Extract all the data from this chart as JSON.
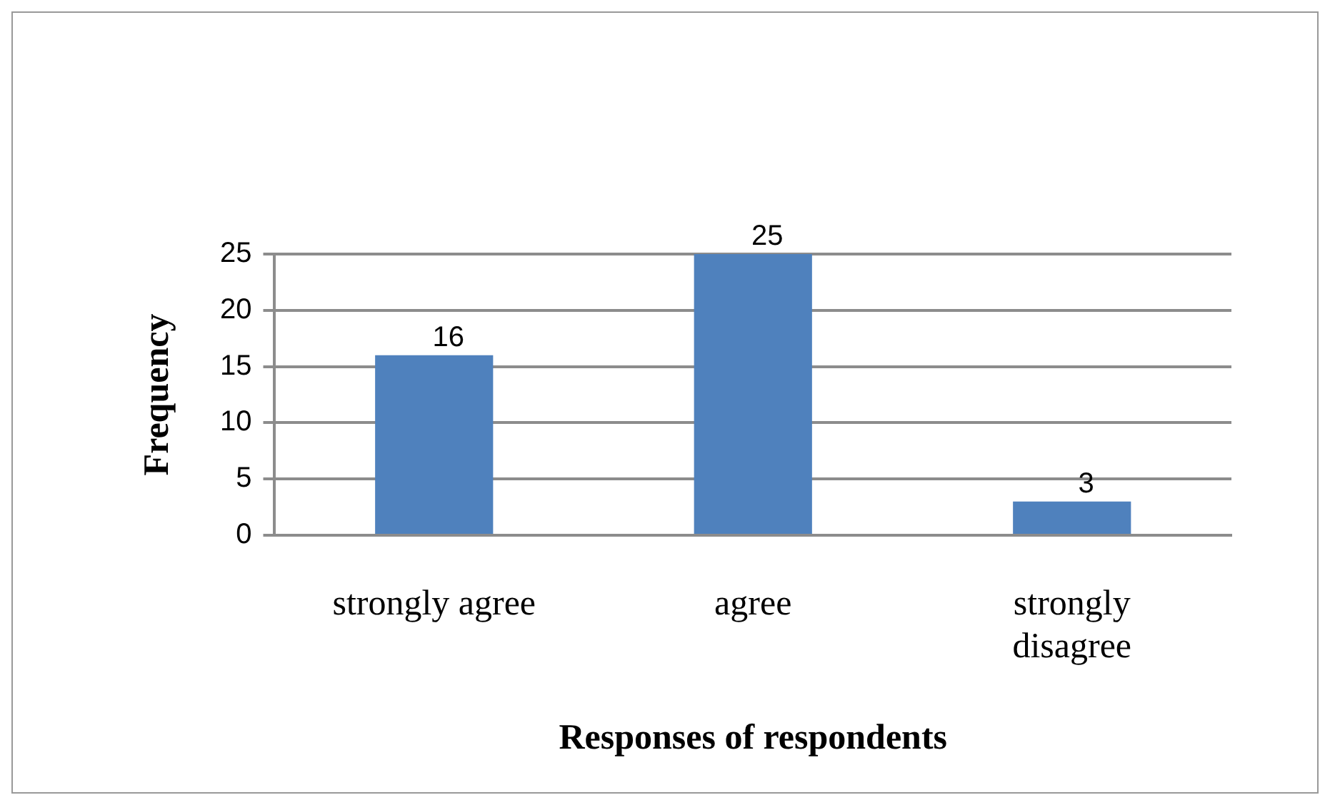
{
  "chart_data": {
    "type": "bar",
    "categories": [
      "strongly agree",
      "agree",
      "strongly disagree"
    ],
    "values": [
      16,
      25,
      3
    ],
    "color": "#4f81bd",
    "xlabel": "Responses of respondents",
    "ylabel": "Frequency",
    "ylim": [
      0,
      25
    ],
    "yticks": [
      0,
      5,
      10,
      15,
      20,
      25
    ],
    "grid": "y",
    "data_labels": true
  }
}
